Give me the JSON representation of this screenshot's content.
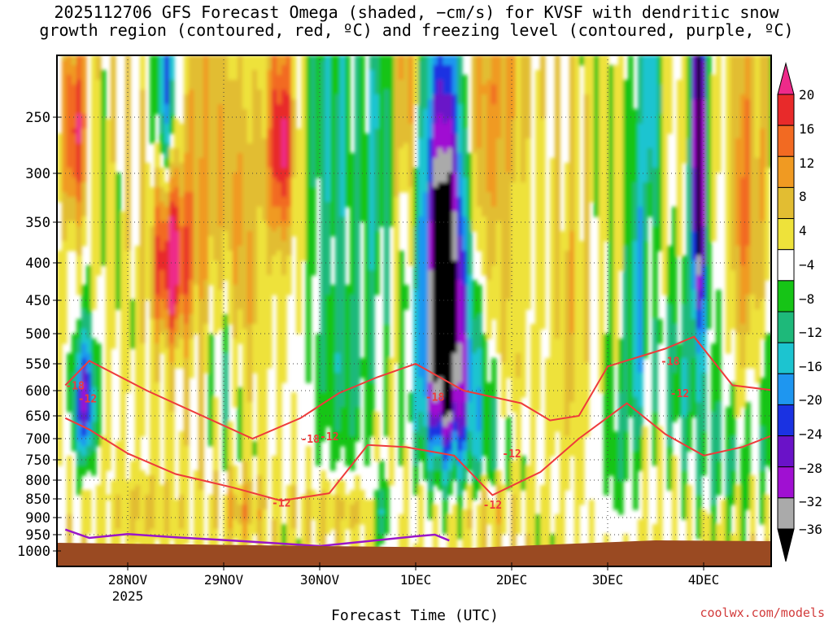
{
  "title_line1": "2025112706 GFS Forecast Omega (shaded, −cm/s) for KVSF with dendritic snow",
  "title_line2": "growth region (contoured, red, ºC) and freezing level (contoured, purple, ºC)",
  "credit": "coolwx.com/models",
  "chart_data": {
    "type": "heatmap",
    "title": "2025112706 GFS Forecast Omega (shaded, −cm/s) for KVSF with dendritic snow growth region (contoured, red, ºC) and freezing level (contoured, purple, ºC)",
    "xlabel": "Forecast Time (UTC)",
    "ylabel": "Pressure (hPa)",
    "x_ticks": [
      "28NOV",
      "29NOV",
      "30NOV",
      "1DEC",
      "2DEC",
      "3DEC",
      "4DEC"
    ],
    "x_tick_year": "2025",
    "x_range_days": [
      -0.65,
      6.75
    ],
    "y_ticks": [
      250,
      300,
      350,
      400,
      450,
      500,
      550,
      600,
      650,
      700,
      750,
      800,
      850,
      900,
      950,
      1000
    ],
    "y_range_hpa": [
      200,
      1020
    ],
    "colorbar": {
      "labels": [
        "20",
        "16",
        "12",
        "8",
        "4",
        "−4",
        "−8",
        "−12",
        "−16",
        "−20",
        "−24",
        "−28",
        "−32",
        "−36"
      ],
      "bins": [
        {
          "range": "> 20",
          "color": "#ee2a8a"
        },
        {
          "range": "16 to 20",
          "color": "#e82a2a"
        },
        {
          "range": "12 to 16",
          "color": "#f26a22"
        },
        {
          "range": "8 to 12",
          "color": "#f09a22"
        },
        {
          "range": "4 to 8",
          "color": "#e2bd32"
        },
        {
          "range": "0 to 4",
          "color": "#eee23a"
        },
        {
          "range": "-4 to 0",
          "color": "#ffffff"
        },
        {
          "range": "-8 to -4",
          "color": "#16c416"
        },
        {
          "range": "-12 to -8",
          "color": "#1eb97a"
        },
        {
          "range": "-16 to -12",
          "color": "#1cc4d0"
        },
        {
          "range": "-20 to -16",
          "color": "#1e96f0"
        },
        {
          "range": "-24 to -20",
          "color": "#1a32e2"
        },
        {
          "range": "-28 to -24",
          "color": "#6a12c8"
        },
        {
          "range": "-32 to -28",
          "color": "#a010d2"
        },
        {
          "range": "-36 to -32",
          "color": "#aaaaaa"
        },
        {
          "range": "< -36",
          "color": "#000000"
        }
      ]
    },
    "omega_features": [
      {
        "center_day": 3.3,
        "center_hpa": 400,
        "peak": -40,
        "description": "strong upward motion core"
      },
      {
        "center_day": 5.95,
        "center_hpa": 330,
        "peak": -36,
        "description": "narrow upward motion column"
      },
      {
        "center_day": 0.45,
        "center_hpa": 400,
        "peak": 20,
        "description": "subsidence maximum"
      },
      {
        "center_day": 1.6,
        "center_hpa": 270,
        "peak": 20,
        "description": "subsidence maximum"
      },
      {
        "center_day": -0.45,
        "center_hpa": 620,
        "peak": -28,
        "description": "upward motion"
      }
    ],
    "contour_labels": [
      {
        "text": "-18",
        "day": -0.55,
        "hpa": 590
      },
      {
        "text": "-12",
        "day": -0.42,
        "hpa": 615
      },
      {
        "text": "-18",
        "day": 1.9,
        "hpa": 700
      },
      {
        "text": "-12",
        "day": 2.1,
        "hpa": 695
      },
      {
        "text": "-12",
        "day": 1.6,
        "hpa": 860
      },
      {
        "text": "-18",
        "day": 3.2,
        "hpa": 612
      },
      {
        "text": "-12",
        "day": 4.0,
        "hpa": 735
      },
      {
        "text": "-12",
        "day": 3.8,
        "hpa": 865
      },
      {
        "text": "-18",
        "day": 5.65,
        "hpa": 545
      },
      {
        "text": "-12",
        "day": 5.75,
        "hpa": 605
      },
      {
        "text": "-18",
        "day": 6.85,
        "hpa": 625
      },
      {
        "text": "-12",
        "day": 6.85,
        "hpa": 745
      }
    ],
    "snow_growth_top_hpa": [
      [
        -0.65,
        590
      ],
      [
        -0.4,
        545
      ],
      [
        0.2,
        600
      ],
      [
        1.3,
        700
      ],
      [
        1.8,
        655
      ],
      [
        2.2,
        605
      ],
      [
        2.6,
        575
      ],
      [
        3.0,
        550
      ],
      [
        3.5,
        600
      ],
      [
        4.1,
        625
      ],
      [
        4.4,
        660
      ],
      [
        4.7,
        650
      ],
      [
        5.0,
        555
      ],
      [
        5.6,
        525
      ],
      [
        5.9,
        505
      ],
      [
        6.3,
        590
      ],
      [
        6.75,
        600
      ]
    ],
    "snow_growth_bottom_hpa": [
      [
        -0.65,
        655
      ],
      [
        -0.4,
        680
      ],
      [
        0.0,
        735
      ],
      [
        0.5,
        785
      ],
      [
        1.1,
        820
      ],
      [
        1.6,
        855
      ],
      [
        2.1,
        835
      ],
      [
        2.5,
        715
      ],
      [
        2.9,
        720
      ],
      [
        3.4,
        740
      ],
      [
        3.8,
        840
      ],
      [
        4.3,
        780
      ],
      [
        4.7,
        700
      ],
      [
        5.2,
        625
      ],
      [
        5.6,
        690
      ],
      [
        6.0,
        740
      ],
      [
        6.4,
        720
      ],
      [
        6.75,
        690
      ]
    ],
    "freezing_level_hpa": [
      [
        -0.65,
        935
      ],
      [
        -0.4,
        960
      ],
      [
        0.0,
        948
      ],
      [
        0.5,
        958
      ],
      [
        1.2,
        970
      ],
      [
        2.0,
        985
      ],
      [
        3.0,
        955
      ],
      [
        3.2,
        950
      ],
      [
        3.35,
        968
      ]
    ],
    "ground_hpa": 960
  }
}
